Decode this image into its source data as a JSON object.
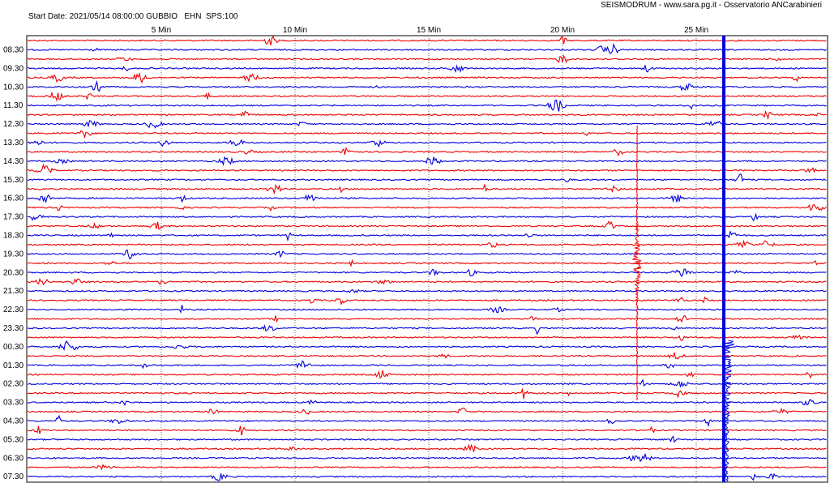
{
  "header": {
    "info": "Start Date: 2021/05/14 08:00:00 GUBBIO   EHN  SPS:100",
    "source": "SEISMODRUM - www.sara.pg.it - Osservatorio ANCarabinieri"
  },
  "x_labels": [
    "5 Min",
    "10 Min",
    "15 Min",
    "20 Min",
    "25 Min"
  ],
  "row_labels": [
    "08.30",
    "09.30",
    "10.30",
    "11.30",
    "12.30",
    "13.30",
    "14.30",
    "15.30",
    "16.30",
    "17.30",
    "18.30",
    "19.30",
    "20.30",
    "21.30",
    "22.30",
    "23.30",
    "00.30",
    "01.30",
    "02.30",
    "03.30",
    "04.30",
    "05.30",
    "06.30",
    "07.30"
  ]
}
